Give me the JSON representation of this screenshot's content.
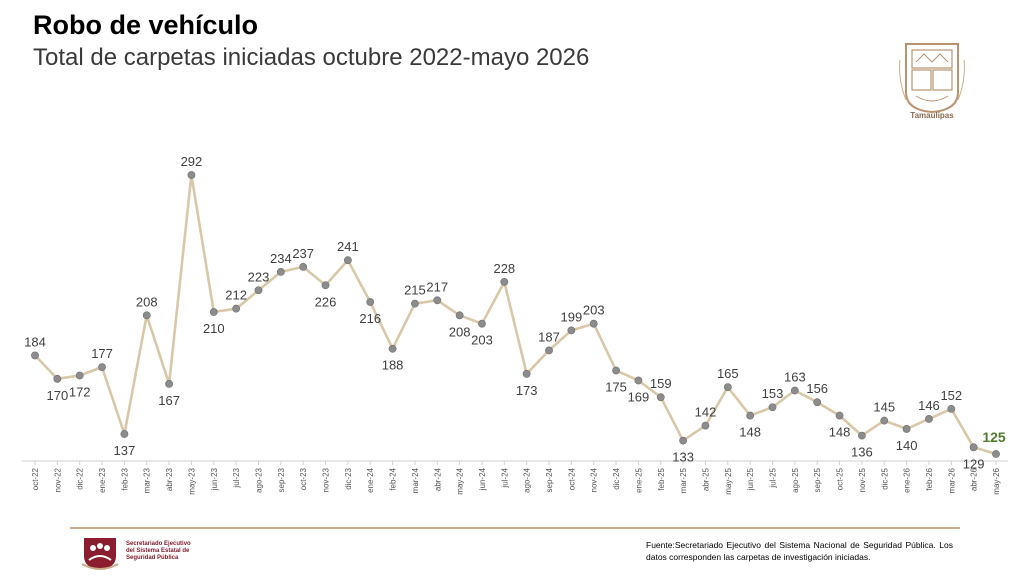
{
  "header": {
    "title": "Robo de vehículo",
    "subtitle": "Total de carpetas iniciadas octubre 2022-mayo 2026"
  },
  "logo": {
    "label": "Tamaulipas"
  },
  "footer": {
    "org_line1": "Secretariado Ejecutivo",
    "org_line2": "del Sistema Estatal de",
    "org_line3": "Seguridad Pública",
    "source": "Fuente:Secretariado Ejecutivo del Sistema Nacional de Seguridad Pública. Los datos corresponden las carpetas de investigación iniciadas."
  },
  "colors": {
    "line": "#d9c8a8",
    "marker": "#8c8c8c",
    "label": "#404040",
    "last_label": "#4f7a2e",
    "accent": "#c9ad8a"
  },
  "chart_data": {
    "type": "line",
    "title": "Robo de vehículo",
    "subtitle": "Total de carpetas iniciadas octubre 2022-mayo 2026",
    "categories": [
      "oct-22",
      "nov-22",
      "dic-22",
      "ene-23",
      "feb-23",
      "mar-23",
      "abr-23",
      "may-23",
      "jun-23",
      "jul-23",
      "ago-23",
      "sep-23",
      "oct-23",
      "nov-23",
      "dic-23",
      "ene-24",
      "feb-24",
      "mar-24",
      "abr-24",
      "may-24",
      "jun-24",
      "jul-24",
      "ago-24",
      "sep-24",
      "oct-24",
      "nov-24",
      "dic-24",
      "ene-25",
      "feb-25",
      "mar-25",
      "abr-25",
      "may-25",
      "jun-25",
      "jul-25",
      "ago-25",
      "sep-25",
      "oct-25",
      "nov-25",
      "dic-25",
      "ene-26",
      "feb-26",
      "mar-26",
      "abr-26",
      "may-26"
    ],
    "values": [
      184,
      170,
      172,
      177,
      137,
      208,
      167,
      292,
      210,
      212,
      223,
      234,
      237,
      226,
      241,
      216,
      188,
      215,
      217,
      208,
      203,
      228,
      173,
      187,
      199,
      203,
      175,
      169,
      159,
      133,
      142,
      165,
      148,
      153,
      163,
      156,
      148,
      136,
      145,
      140,
      146,
      152,
      129,
      125
    ],
    "data_labels": [
      "184",
      "170",
      "172",
      "177",
      "137",
      "208",
      "167",
      "292",
      "210",
      "212",
      "223",
      "234",
      "237",
      "226",
      "241",
      "216",
      "188",
      "215",
      "217",
      "208",
      "203",
      "228",
      "173",
      "187",
      "199",
      "203",
      "175",
      "169",
      "159",
      "133",
      "142",
      "165",
      "148",
      "153",
      "163",
      "156",
      "148",
      "136",
      "145",
      "140",
      "146",
      "152",
      "129",
      "125"
    ],
    "xlabel": "",
    "ylabel": "",
    "grid": false,
    "legend": "none"
  }
}
